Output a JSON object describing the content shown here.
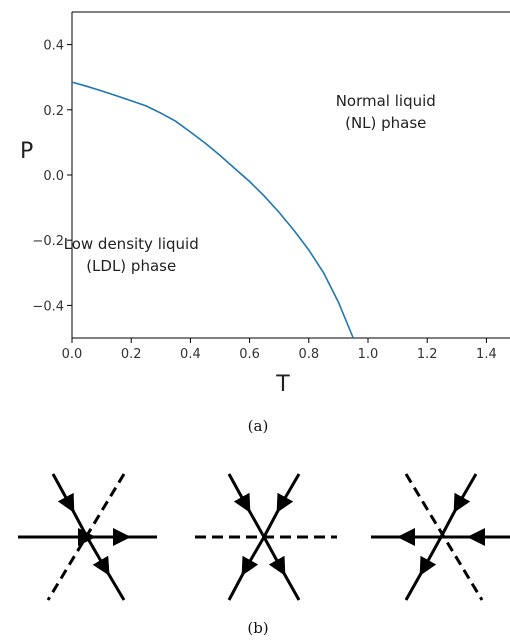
{
  "chart_data": {
    "type": "line",
    "xlabel": "T",
    "ylabel": "P",
    "xlim": [
      0.0,
      1.5
    ],
    "ylim": [
      -0.5,
      0.5
    ],
    "xticks": [
      "0.0",
      "0.2",
      "0.4",
      "0.6",
      "0.8",
      "1.0",
      "1.2",
      "1.4"
    ],
    "yticks": [
      "−0.4",
      "−0.2",
      "0.0",
      "0.2",
      "0.4"
    ],
    "grid": false,
    "series": [
      {
        "color": "#1f77b4",
        "x": [
          0.0,
          0.05,
          0.1,
          0.15,
          0.2,
          0.25,
          0.3,
          0.35,
          0.4,
          0.45,
          0.5,
          0.55,
          0.6,
          0.65,
          0.7,
          0.75,
          0.8,
          0.85,
          0.9,
          0.95
        ],
        "y": [
          0.285,
          0.272,
          0.258,
          0.243,
          0.228,
          0.212,
          0.19,
          0.165,
          0.132,
          0.098,
          0.06,
          0.02,
          -0.02,
          -0.065,
          -0.115,
          -0.17,
          -0.23,
          -0.3,
          -0.39,
          -0.5
        ]
      }
    ],
    "annotations": [
      {
        "lines": [
          "Normal liquid",
          "(NL) phase"
        ],
        "x": 1.06,
        "y": 0.2
      },
      {
        "lines": [
          "Low density liquid",
          "(LDL) phase"
        ],
        "x": 0.2,
        "y": -0.24
      }
    ]
  },
  "captions": {
    "a": "(a)",
    "b": "(b)"
  },
  "diagrams": [
    {
      "name": "vertex-1"
    },
    {
      "name": "vertex-2"
    },
    {
      "name": "vertex-3"
    }
  ]
}
